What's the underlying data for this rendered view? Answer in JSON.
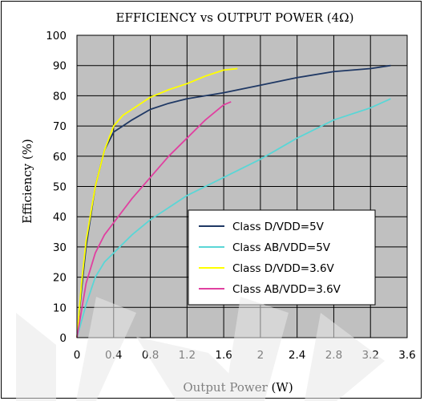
{
  "chart_data": {
    "type": "line",
    "title": "EFFICIENCY vs OUTPUT POWER (4Ω)",
    "xlabel": "Output Power (W)",
    "ylabel": "Efficiency (%)",
    "xlim": [
      0,
      3.6
    ],
    "ylim": [
      0,
      100
    ],
    "x_ticks": [
      "0",
      "0.4",
      "0.8",
      "1.2",
      "1.6",
      "2",
      "2.4",
      "2.8",
      "3.2",
      "3.6"
    ],
    "y_ticks": [
      "0",
      "10",
      "20",
      "30",
      "40",
      "50",
      "60",
      "70",
      "80",
      "90",
      "100"
    ],
    "grid": true,
    "legend_position": "lower-right",
    "series": [
      {
        "name": "Class D/VDD=5V",
        "color": "#1f3864",
        "x": [
          0.0,
          0.05,
          0.1,
          0.2,
          0.3,
          0.4,
          0.5,
          0.6,
          0.8,
          1.0,
          1.2,
          1.6,
          2.0,
          2.4,
          2.8,
          3.2,
          3.42
        ],
        "y": [
          0,
          16,
          30,
          50,
          62,
          68,
          70,
          72,
          75.5,
          77.5,
          79,
          81,
          83.5,
          86,
          88,
          89,
          90
        ]
      },
      {
        "name": "Class AB/VDD=5V",
        "color": "#5ad6d6",
        "x": [
          0.0,
          0.1,
          0.2,
          0.3,
          0.4,
          0.6,
          0.8,
          1.0,
          1.2,
          1.6,
          2.0,
          2.4,
          2.8,
          3.2,
          3.42
        ],
        "y": [
          0,
          11,
          20,
          25,
          28,
          34,
          39,
          43,
          47,
          53,
          59,
          66,
          72,
          76,
          79
        ]
      },
      {
        "name": "Class D/VDD=3.6V",
        "color": "#ffff00",
        "x": [
          0.0,
          0.05,
          0.1,
          0.2,
          0.3,
          0.4,
          0.5,
          0.6,
          0.8,
          1.0,
          1.2,
          1.4,
          1.6,
          1.75
        ],
        "y": [
          0,
          18,
          32,
          50,
          62,
          70,
          73.5,
          75.5,
          79.5,
          82,
          84,
          86.5,
          88.5,
          89
        ]
      },
      {
        "name": "Class AB/VDD=3.6V",
        "color": "#e040a0",
        "x": [
          0.0,
          0.1,
          0.2,
          0.3,
          0.4,
          0.6,
          0.8,
          1.0,
          1.2,
          1.4,
          1.6,
          1.68
        ],
        "y": [
          0,
          18,
          28,
          34,
          38,
          46,
          53,
          60,
          66,
          72,
          77,
          78
        ]
      }
    ]
  }
}
